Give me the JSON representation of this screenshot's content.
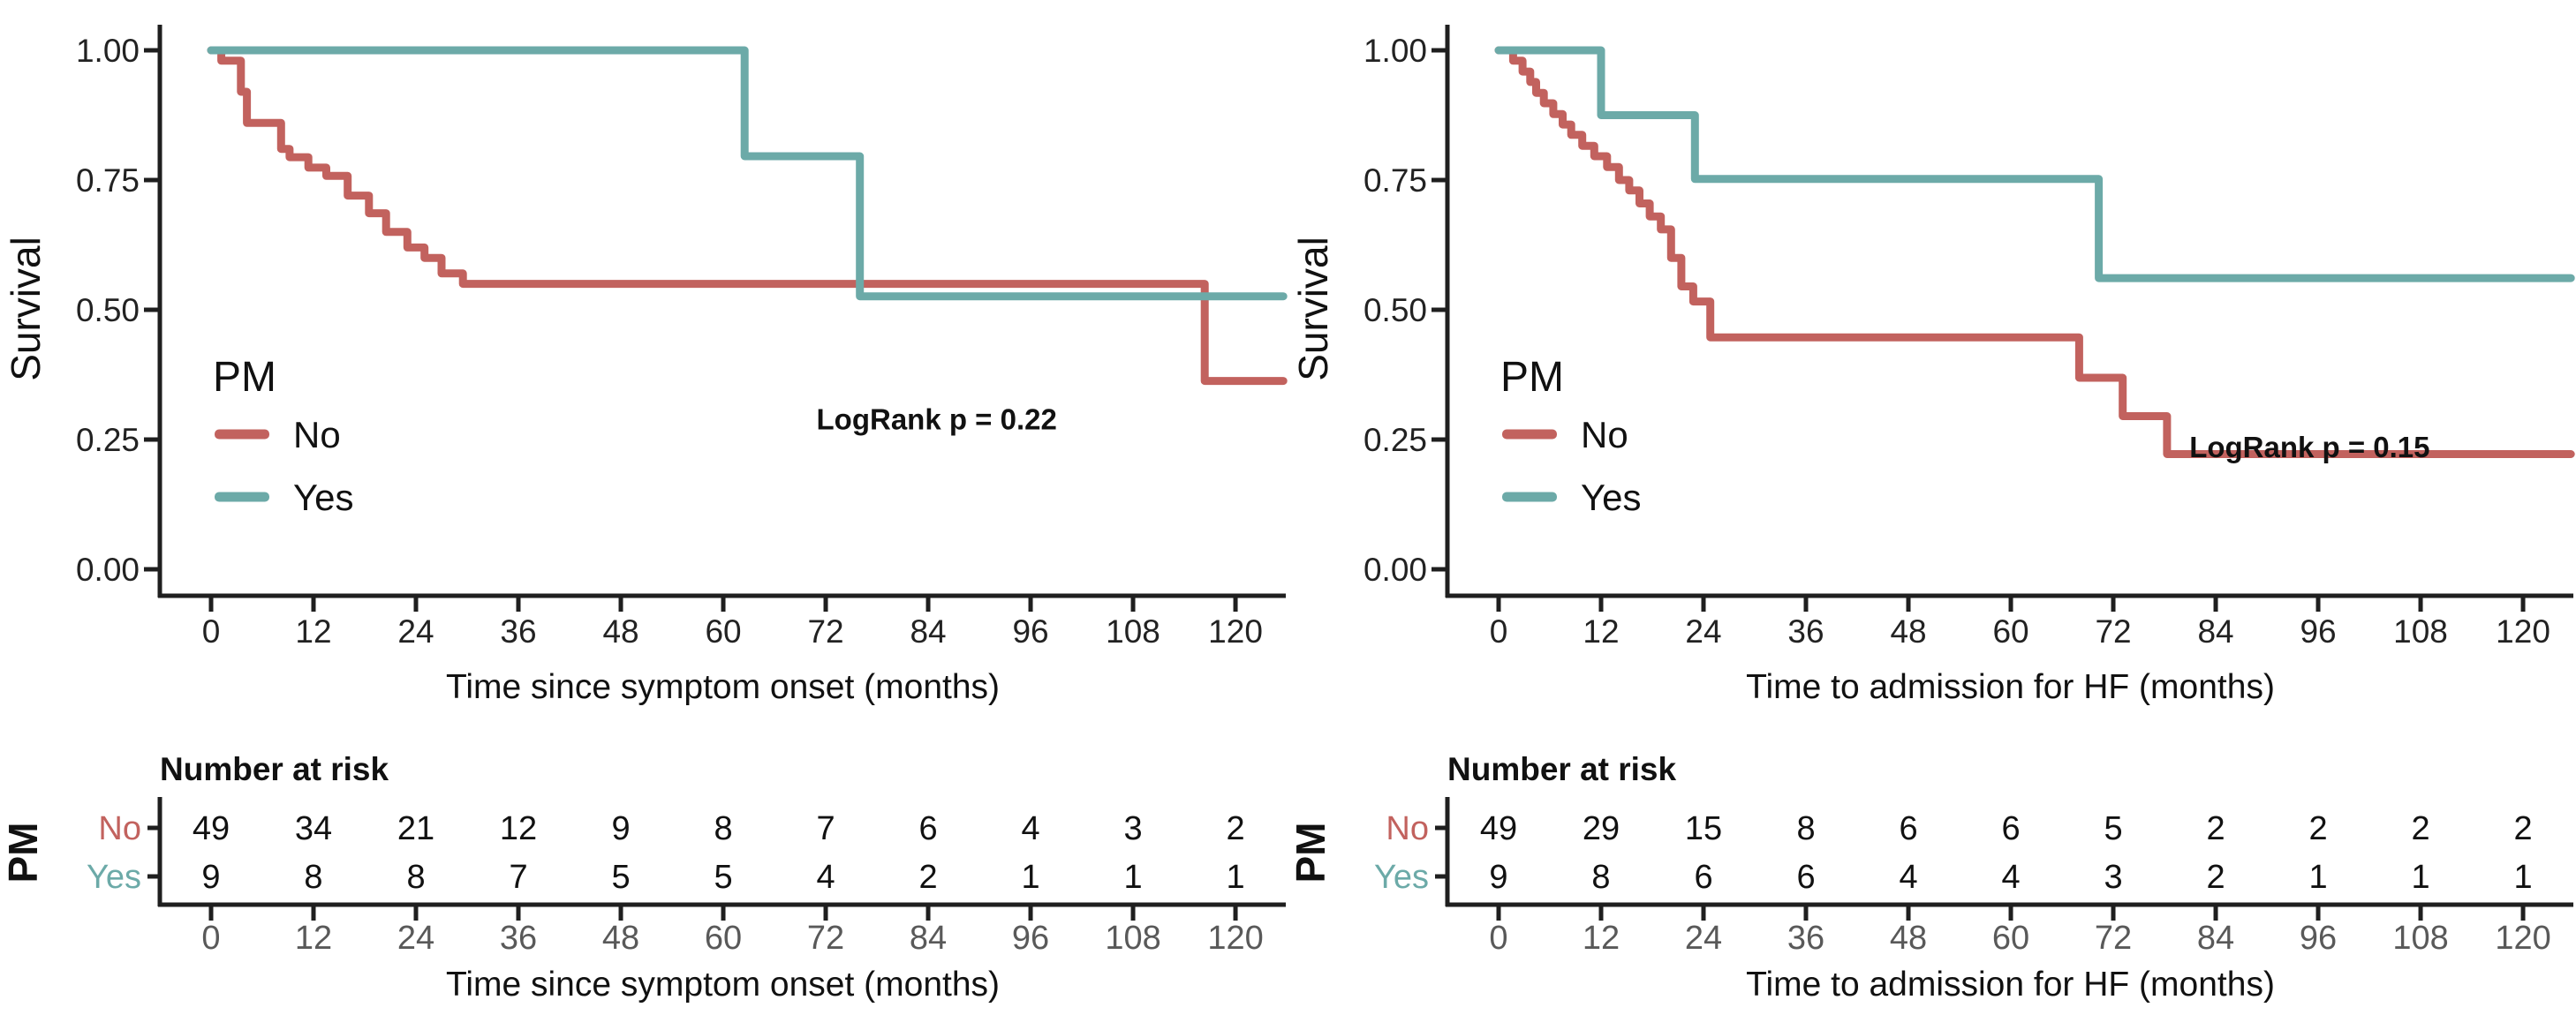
{
  "figure_title": "",
  "style": {
    "color_no": "#C2625E",
    "color_yes": "#6CAAA8",
    "ink": "#1F1F1F",
    "tick_label_color": "#222222",
    "risk_axis_label_color": "#595959",
    "background": "#FFFFFF"
  },
  "chart_data": [
    {
      "type": "line",
      "subtype": "kaplan-meier-step",
      "panel": "left",
      "title": "",
      "xlabel": "Time since symptom onset (months)",
      "ylabel": "Survival",
      "xlim": [
        0,
        126
      ],
      "ylim": [
        0,
        1
      ],
      "grid": false,
      "xticks": [
        0,
        12,
        24,
        36,
        48,
        60,
        72,
        84,
        96,
        108,
        120
      ],
      "ytick_labels": [
        "0.00",
        "0.25",
        "0.50",
        "0.75",
        "1.00"
      ],
      "yticks": [
        0,
        0.25,
        0.5,
        0.75,
        1.0
      ],
      "legend": {
        "title": "PM",
        "position": "inside-lower-left",
        "items": [
          {
            "label": "No",
            "color": "#C2625E"
          },
          {
            "label": "Yes",
            "color": "#6CAAA8"
          }
        ]
      },
      "annotation": {
        "text": "LogRank p = 0.22",
        "x_months": 85,
        "y_survival": 0.29
      },
      "series": [
        {
          "name": "No",
          "color": "#C2625E",
          "end_months": 125.6,
          "points": [
            [
              0,
              1.0
            ],
            [
              1.2,
              0.98
            ],
            [
              3.5,
              0.92
            ],
            [
              4.2,
              0.86
            ],
            [
              8.2,
              0.81
            ],
            [
              9.2,
              0.794
            ],
            [
              11.4,
              0.774
            ],
            [
              13.5,
              0.758
            ],
            [
              16,
              0.72
            ],
            [
              18.5,
              0.686
            ],
            [
              20.5,
              0.65
            ],
            [
              23,
              0.62
            ],
            [
              25,
              0.6
            ],
            [
              27,
              0.57
            ],
            [
              29.5,
              0.55
            ],
            [
              116.4,
              0.363
            ]
          ]
        },
        {
          "name": "Yes",
          "color": "#6CAAA8",
          "end_months": 125.6,
          "points": [
            [
              0,
              1.0
            ],
            [
              62.5,
              0.796
            ],
            [
              76,
              0.526
            ]
          ]
        }
      ],
      "risk_table": {
        "title": "Number at risk",
        "group_label": "PM",
        "xticks": [
          0,
          12,
          24,
          36,
          48,
          60,
          72,
          84,
          96,
          108,
          120
        ],
        "xlabel": "Time since symptom onset (months)",
        "rows": [
          {
            "label": "No",
            "color": "#C2625E",
            "values": [
              49,
              34,
              21,
              12,
              9,
              8,
              7,
              6,
              4,
              3,
              2
            ]
          },
          {
            "label": "Yes",
            "color": "#6CAAA8",
            "values": [
              9,
              8,
              8,
              7,
              5,
              5,
              4,
              2,
              1,
              1,
              1
            ]
          }
        ]
      }
    },
    {
      "type": "line",
      "subtype": "kaplan-meier-step",
      "panel": "right",
      "title": "",
      "xlabel": "Time to admission for HF (months)",
      "ylabel": "Survival",
      "xlim": [
        0,
        126
      ],
      "ylim": [
        0,
        1
      ],
      "grid": false,
      "xticks": [
        0,
        12,
        24,
        36,
        48,
        60,
        72,
        84,
        96,
        108,
        120
      ],
      "ytick_labels": [
        "0.00",
        "0.25",
        "0.50",
        "0.75",
        "1.00"
      ],
      "yticks": [
        0,
        0.25,
        0.5,
        0.75,
        1.0
      ],
      "legend": {
        "title": "PM",
        "position": "inside-lower-left",
        "items": [
          {
            "label": "No",
            "color": "#C2625E"
          },
          {
            "label": "Yes",
            "color": "#6CAAA8"
          }
        ]
      },
      "annotation": {
        "text": "LogRank p = 0.15",
        "x_months": 95,
        "y_survival": 0.236
      },
      "series": [
        {
          "name": "No",
          "color": "#C2625E",
          "end_months": 125.6,
          "points": [
            [
              0,
              1.0
            ],
            [
              1.7,
              0.98
            ],
            [
              2.8,
              0.959
            ],
            [
              3.7,
              0.939
            ],
            [
              4.4,
              0.918
            ],
            [
              5.3,
              0.898
            ],
            [
              6.4,
              0.877
            ],
            [
              7.5,
              0.857
            ],
            [
              8.5,
              0.837
            ],
            [
              9.8,
              0.816
            ],
            [
              11.2,
              0.796
            ],
            [
              12.7,
              0.775
            ],
            [
              14.1,
              0.75
            ],
            [
              15.3,
              0.73
            ],
            [
              16.5,
              0.705
            ],
            [
              17.7,
              0.68
            ],
            [
              19,
              0.655
            ],
            [
              20.2,
              0.6
            ],
            [
              21.4,
              0.545
            ],
            [
              22.8,
              0.516
            ],
            [
              24.8,
              0.447
            ],
            [
              68,
              0.369
            ],
            [
              73.1,
              0.295
            ],
            [
              78.3,
              0.222
            ]
          ]
        },
        {
          "name": "Yes",
          "color": "#6CAAA8",
          "end_months": 125.6,
          "points": [
            [
              0,
              1.0
            ],
            [
              12,
              0.875
            ],
            [
              23,
              0.752
            ],
            [
              70.3,
              0.561
            ]
          ]
        }
      ],
      "risk_table": {
        "title": "Number at risk",
        "group_label": "PM",
        "xticks": [
          0,
          12,
          24,
          36,
          48,
          60,
          72,
          84,
          96,
          108,
          120
        ],
        "xlabel": "Time to admission for HF (months)",
        "rows": [
          {
            "label": "No",
            "color": "#C2625E",
            "values": [
              49,
              29,
              15,
              8,
              6,
              6,
              5,
              2,
              2,
              2,
              2
            ]
          },
          {
            "label": "Yes",
            "color": "#6CAAA8",
            "values": [
              9,
              8,
              6,
              6,
              4,
              4,
              3,
              2,
              1,
              1,
              1
            ]
          }
        ]
      }
    }
  ]
}
